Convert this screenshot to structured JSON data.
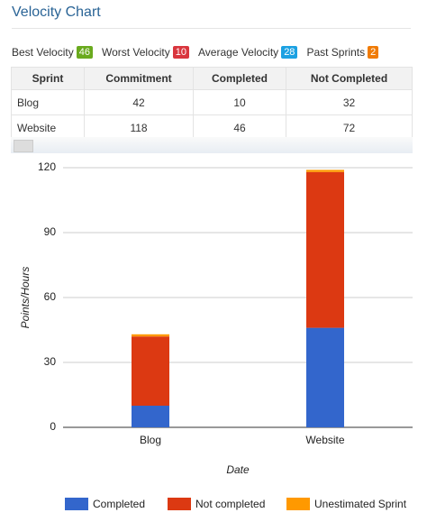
{
  "header": {
    "title": "Velocity Chart"
  },
  "stats": [
    {
      "label": "Best Velocity",
      "value": 46,
      "color": "#6aaa1e"
    },
    {
      "label": "Worst Velocity",
      "value": 10,
      "color": "#d9363e"
    },
    {
      "label": "Average Velocity",
      "value": 28,
      "color": "#1ba1e2"
    },
    {
      "label": "Past Sprints",
      "value": 2,
      "color": "#f07b05"
    }
  ],
  "table": {
    "columns": [
      "Sprint",
      "Commitment",
      "Completed",
      "Not Completed"
    ],
    "rows": [
      [
        "Blog",
        42,
        10,
        32
      ],
      [
        "Website",
        118,
        46,
        72
      ]
    ]
  },
  "chart_data": {
    "type": "stacked_bar",
    "x_label": "Date",
    "y_label": "Points/Hours",
    "categories": [
      "Blog",
      "Website"
    ],
    "series": [
      {
        "name": "Completed",
        "color": "#3366cc",
        "values": [
          10,
          46
        ]
      },
      {
        "name": "Not completed",
        "color": "#dc3912",
        "values": [
          32,
          72
        ]
      },
      {
        "name": "Unestimated Sprint",
        "color": "#ff9900",
        "values": [
          1,
          1
        ]
      }
    ],
    "ylim": [
      0,
      120
    ],
    "yticks": [
      0,
      30,
      60,
      90,
      120
    ],
    "grid": true
  }
}
